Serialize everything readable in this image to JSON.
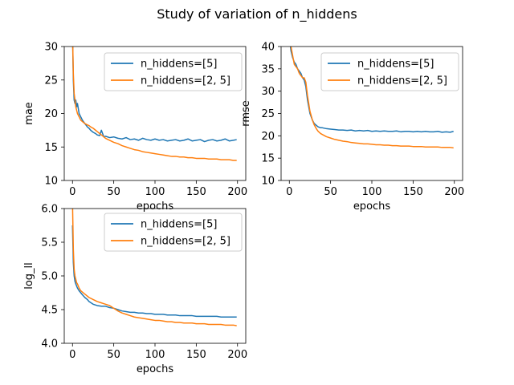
{
  "figure": {
    "title": "Study of variation of n_hiddens"
  },
  "colors": {
    "series_1": "#1f77b4",
    "series_2": "#ff7f0e"
  },
  "chart_data": [
    {
      "type": "line",
      "xlabel": "epochs",
      "ylabel": "mae",
      "xlim": [
        -10,
        210
      ],
      "ylim": [
        10,
        30
      ],
      "xticks": [
        0,
        50,
        100,
        150,
        200
      ],
      "yticks": [
        10,
        15,
        20,
        25,
        30
      ],
      "legend_position": "top-right",
      "grid": false,
      "series": [
        {
          "name": "n_hiddens=[5]",
          "color": "#1f77b4",
          "x": [
            0,
            1,
            2,
            3,
            4,
            5,
            6,
            8,
            10,
            12,
            15,
            18,
            20,
            22,
            25,
            28,
            30,
            33,
            35,
            38,
            40,
            45,
            50,
            55,
            60,
            65,
            70,
            75,
            80,
            85,
            90,
            95,
            100,
            105,
            110,
            115,
            120,
            125,
            130,
            135,
            140,
            145,
            150,
            155,
            160,
            165,
            170,
            175,
            180,
            185,
            190,
            195,
            199
          ],
          "y": [
            32,
            25,
            22,
            21.5,
            22,
            21,
            21.5,
            20,
            19.5,
            19,
            18.5,
            18,
            17.8,
            17.5,
            17.2,
            17,
            16.8,
            16.7,
            17.5,
            16.5,
            16.6,
            16.4,
            16.5,
            16.3,
            16.2,
            16.4,
            16.1,
            16.2,
            16,
            16.3,
            16.1,
            16,
            16.2,
            16,
            16.1,
            15.9,
            16,
            16.1,
            15.9,
            16,
            16.2,
            15.9,
            16,
            16.1,
            15.8,
            16,
            16.1,
            15.9,
            16,
            16.2,
            15.9,
            16,
            16.1
          ]
        },
        {
          "name": "n_hiddens=[2, 5]",
          "color": "#ff7f0e",
          "x": [
            0,
            1,
            2,
            3,
            4,
            5,
            6,
            8,
            10,
            12,
            15,
            18,
            20,
            22,
            25,
            28,
            30,
            33,
            35,
            38,
            40,
            45,
            50,
            55,
            60,
            65,
            70,
            75,
            80,
            85,
            90,
            95,
            100,
            105,
            110,
            115,
            120,
            125,
            130,
            135,
            140,
            145,
            150,
            155,
            160,
            165,
            170,
            175,
            180,
            185,
            190,
            195,
            199
          ],
          "y": [
            32,
            26,
            23,
            22,
            21,
            20.5,
            20,
            19.5,
            19,
            18.8,
            18.5,
            18.3,
            18.2,
            18,
            17.8,
            17.5,
            17.3,
            17,
            16.8,
            16.5,
            16.3,
            16,
            15.7,
            15.5,
            15.2,
            15,
            14.8,
            14.6,
            14.5,
            14.3,
            14.2,
            14.1,
            14,
            13.9,
            13.8,
            13.7,
            13.6,
            13.6,
            13.5,
            13.5,
            13.4,
            13.4,
            13.3,
            13.3,
            13.3,
            13.2,
            13.2,
            13.2,
            13.1,
            13.1,
            13.1,
            13,
            13
          ]
        }
      ]
    },
    {
      "type": "line",
      "xlabel": "epochs",
      "ylabel": "rmse",
      "xlim": [
        -10,
        210
      ],
      "ylim": [
        10,
        40
      ],
      "xticks": [
        0,
        50,
        100,
        150,
        200
      ],
      "yticks": [
        10,
        15,
        20,
        25,
        30,
        35,
        40
      ],
      "legend_position": "top-right",
      "grid": false,
      "series": [
        {
          "name": "n_hiddens=[5]",
          "color": "#1f77b4",
          "x": [
            0,
            2,
            4,
            6,
            8,
            10,
            12,
            14,
            16,
            18,
            20,
            22,
            25,
            28,
            30,
            33,
            35,
            38,
            40,
            45,
            50,
            55,
            60,
            65,
            70,
            75,
            80,
            85,
            90,
            95,
            100,
            105,
            110,
            115,
            120,
            125,
            130,
            135,
            140,
            145,
            150,
            155,
            160,
            165,
            170,
            175,
            180,
            185,
            190,
            195,
            199
          ],
          "y": [
            42,
            39,
            37.5,
            36.5,
            36,
            35,
            34.5,
            34,
            33,
            32.5,
            31,
            28,
            25,
            23.5,
            22.8,
            22.3,
            22,
            21.8,
            21.8,
            21.6,
            21.5,
            21.4,
            21.3,
            21.3,
            21.2,
            21.3,
            21.1,
            21.2,
            21.1,
            21.2,
            21,
            21.1,
            21,
            21.1,
            21,
            21,
            21.1,
            20.9,
            21,
            21,
            20.9,
            21,
            20.9,
            21,
            20.9,
            20.9,
            21,
            20.8,
            20.9,
            20.8,
            21
          ]
        },
        {
          "name": "n_hiddens=[2, 5]",
          "color": "#ff7f0e",
          "x": [
            0,
            2,
            4,
            6,
            8,
            10,
            12,
            14,
            16,
            18,
            20,
            22,
            25,
            28,
            30,
            33,
            35,
            38,
            40,
            45,
            50,
            55,
            60,
            65,
            70,
            75,
            80,
            85,
            90,
            95,
            100,
            105,
            110,
            115,
            120,
            125,
            130,
            135,
            140,
            145,
            150,
            155,
            160,
            165,
            170,
            175,
            180,
            185,
            190,
            195,
            199
          ],
          "y": [
            42,
            40,
            38,
            36,
            35.5,
            35,
            34,
            33.5,
            33,
            33,
            32,
            29,
            25.5,
            23.5,
            22.5,
            21.5,
            21,
            20.5,
            20.3,
            19.8,
            19.5,
            19.2,
            19,
            18.8,
            18.7,
            18.5,
            18.4,
            18.3,
            18.2,
            18.2,
            18.1,
            18,
            18,
            17.9,
            17.9,
            17.8,
            17.8,
            17.7,
            17.7,
            17.7,
            17.6,
            17.6,
            17.6,
            17.5,
            17.5,
            17.5,
            17.5,
            17.4,
            17.4,
            17.4,
            17.3
          ]
        }
      ]
    },
    {
      "type": "line",
      "xlabel": "epochs",
      "ylabel": "log_ll",
      "xlim": [
        -10,
        210
      ],
      "ylim": [
        4.0,
        6.0
      ],
      "xticks": [
        0,
        50,
        100,
        150,
        200
      ],
      "yticks": [
        4.0,
        4.5,
        5.0,
        5.5,
        6.0
      ],
      "legend_position": "top-right",
      "grid": false,
      "series": [
        {
          "name": "n_hiddens=[5]",
          "color": "#1f77b4",
          "x": [
            0,
            1,
            2,
            3,
            4,
            5,
            6,
            8,
            10,
            12,
            15,
            18,
            20,
            25,
            30,
            35,
            40,
            45,
            50,
            55,
            60,
            65,
            70,
            75,
            80,
            85,
            90,
            95,
            100,
            105,
            110,
            115,
            120,
            125,
            130,
            135,
            140,
            145,
            150,
            155,
            160,
            165,
            170,
            175,
            180,
            185,
            190,
            195,
            199
          ],
          "y": [
            5.75,
            5.2,
            5.0,
            4.92,
            4.88,
            4.85,
            4.82,
            4.78,
            4.75,
            4.72,
            4.68,
            4.65,
            4.62,
            4.58,
            4.56,
            4.55,
            4.55,
            4.53,
            4.52,
            4.5,
            4.48,
            4.47,
            4.46,
            4.46,
            4.45,
            4.45,
            4.44,
            4.44,
            4.43,
            4.43,
            4.43,
            4.42,
            4.42,
            4.42,
            4.41,
            4.41,
            4.41,
            4.41,
            4.4,
            4.4,
            4.4,
            4.4,
            4.4,
            4.4,
            4.39,
            4.39,
            4.39,
            4.39,
            4.39
          ]
        },
        {
          "name": "n_hiddens=[2, 5]",
          "color": "#ff7f0e",
          "x": [
            0,
            1,
            2,
            3,
            4,
            5,
            6,
            8,
            10,
            12,
            15,
            18,
            20,
            25,
            30,
            35,
            40,
            45,
            50,
            55,
            60,
            65,
            70,
            75,
            80,
            85,
            90,
            95,
            100,
            105,
            110,
            115,
            120,
            125,
            130,
            135,
            140,
            145,
            150,
            155,
            160,
            165,
            170,
            175,
            180,
            185,
            190,
            195,
            199
          ],
          "y": [
            6.1,
            5.4,
            5.1,
            5.0,
            4.95,
            4.9,
            4.88,
            4.82,
            4.78,
            4.76,
            4.73,
            4.7,
            4.68,
            4.65,
            4.62,
            4.6,
            4.58,
            4.56,
            4.52,
            4.48,
            4.45,
            4.43,
            4.41,
            4.39,
            4.38,
            4.37,
            4.36,
            4.35,
            4.34,
            4.34,
            4.33,
            4.32,
            4.32,
            4.31,
            4.31,
            4.3,
            4.3,
            4.3,
            4.29,
            4.29,
            4.29,
            4.28,
            4.28,
            4.28,
            4.28,
            4.27,
            4.27,
            4.27,
            4.26
          ]
        }
      ]
    }
  ]
}
